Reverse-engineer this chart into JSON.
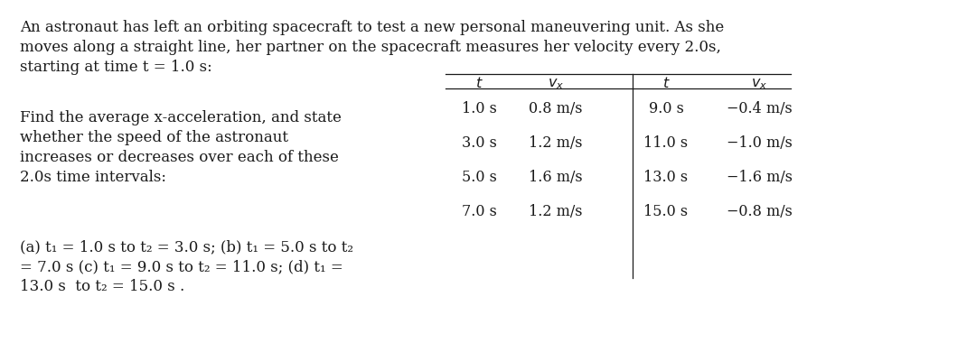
{
  "background_color": "#ffffff",
  "text_color": "#1a1a1a",
  "font_size_body": 12.0,
  "font_size_table": 11.5,
  "para1_line1": "An astronaut has left an orbiting spacecraft to test a new personal maneuvering unit. As she",
  "para1_line2": "moves along a straight line, her partner on the spacecraft measures her velocity every 2.0s,",
  "para1_line3": "starting at time t = 1.0 s:",
  "para2_line1": "Find the average x-acceleration, and state",
  "para2_line2": "whether the speed of the astronaut",
  "para2_line3": "increases or decreases over each of these",
  "para2_line4": "2.0s time intervals:",
  "para3_line1": "(a) t₁ = 1.0 s to t₂ = 3.0 s; (b) t₁ = 5.0 s to t₂",
  "para3_line2": "= 7.0 s (c) t₁ = 9.0 s to t₂ = 11.0 s; (d) t₁ =",
  "para3_line3": "13.0 s  to t₂ = 15.0 s .",
  "table_left": [
    [
      "1.0 s",
      "0.8 m/s"
    ],
    [
      "3.0 s",
      "1.2 m/s"
    ],
    [
      "5.0 s",
      "1.6 m/s"
    ],
    [
      "7.0 s",
      "1.2 m/s"
    ]
  ],
  "table_right": [
    [
      "9.0 s",
      "−0.4 m/s"
    ],
    [
      "11.0 s",
      "−1.0 m/s"
    ],
    [
      "13.0 s",
      "−1.6 m/s"
    ],
    [
      "15.0 s",
      "−0.8 m/s"
    ]
  ]
}
